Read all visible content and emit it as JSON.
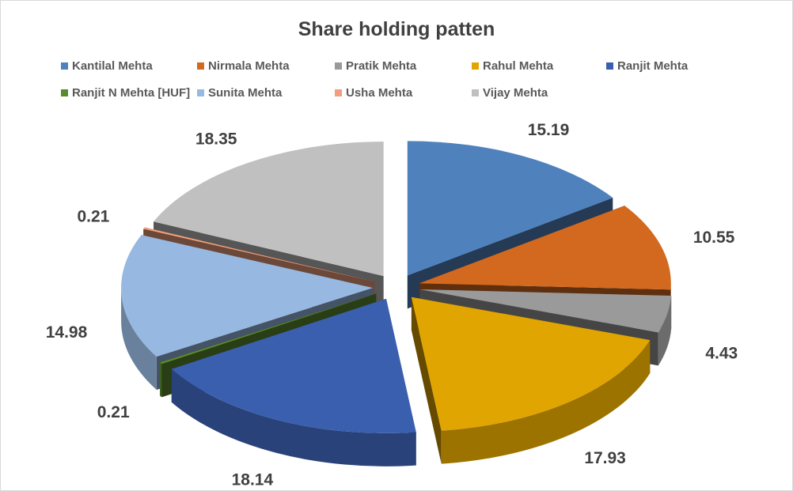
{
  "chart_data": {
    "type": "pie",
    "variant": "3d-exploded",
    "title": "Share holding patten",
    "legend_position": "top",
    "categories": [
      "Kantilal Mehta",
      "Nirmala Mehta",
      "Pratik Mehta",
      "Rahul Mehta",
      "Ranjit Mehta",
      "Ranjit N Mehta [HUF]",
      "Sunita Mehta",
      "Usha Mehta",
      "Vijay Mehta"
    ],
    "values": [
      15.19,
      10.55,
      4.43,
      17.93,
      18.14,
      0.21,
      14.98,
      0.21,
      18.35
    ],
    "value_labels": [
      "15.19",
      "10.55",
      "4.43",
      "17.93",
      "18.14",
      "0.21",
      "14.98",
      "0.21",
      "18.35"
    ],
    "colors": [
      "#4F81BD",
      "#D2691E",
      "#9A9A9A",
      "#E0A500",
      "#3A5FAF",
      "#5A8A2E",
      "#97B8E0",
      "#F0A07E",
      "#C0C0C0"
    ]
  }
}
